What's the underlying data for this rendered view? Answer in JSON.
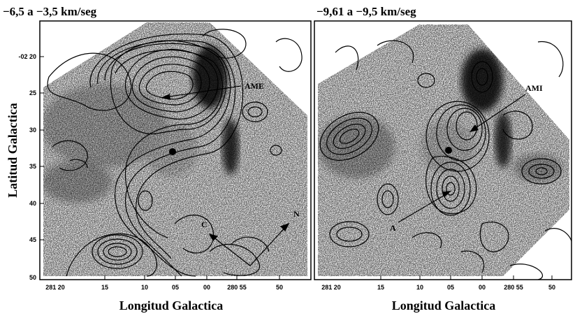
{
  "figure": {
    "y_axis_title": "Latitud Galactica",
    "panels": [
      {
        "id": "left",
        "title": "−6,5 a −3,5 km/seg",
        "x_axis_title": "Longitud Galactica",
        "x_ticks": [
          "281 20",
          "15",
          "10",
          "05",
          "00",
          "280 55",
          "50"
        ],
        "y_ticks": [
          "-02 20",
          "25",
          "30",
          "35",
          "40",
          "45",
          "50"
        ],
        "labels": {
          "ame": "AME",
          "c": "C",
          "n": "N"
        }
      },
      {
        "id": "right",
        "title": "−9,61 a −9,5 km/seg",
        "x_axis_title": "Longitud Galactica",
        "x_ticks": [
          "281 20",
          "15",
          "10",
          "05",
          "00",
          "280 55",
          "50"
        ],
        "labels": {
          "ami": "AMI",
          "a": "A"
        }
      }
    ]
  }
}
